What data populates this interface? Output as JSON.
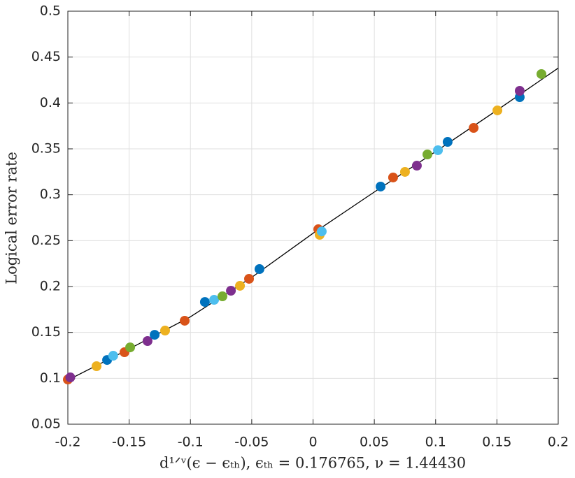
{
  "chart_data": {
    "type": "scatter",
    "x_label": "d¹ᐟᵛ(ϵ − ϵₜₕ), ϵₜₕ = 0.176765, ν = 1.44430",
    "y_label": "Logical error rate",
    "xlim": [
      -0.2,
      0.2
    ],
    "ylim": [
      0.05,
      0.5
    ],
    "xticks": [
      -0.2,
      -0.15,
      -0.1,
      -0.05,
      0,
      0.05,
      0.1,
      0.15,
      0.2
    ],
    "yticks": [
      0.05,
      0.1,
      0.15,
      0.2,
      0.25,
      0.3,
      0.35,
      0.4,
      0.45,
      0.5
    ],
    "grid": true,
    "series": [
      {
        "type": "line",
        "color": "#000000",
        "x": [
          -0.2,
          -0.15,
          -0.1,
          -0.05,
          0,
          0.05,
          0.1,
          0.15,
          0.2
        ],
        "values": [
          0.098,
          0.132,
          0.167,
          0.21,
          0.258,
          0.303,
          0.347,
          0.392,
          0.438
        ]
      },
      {
        "type": "scatter",
        "x": [
          -0.2,
          -0.198,
          -0.1766,
          -0.168,
          -0.163,
          -0.1538,
          -0.1492,
          -0.135,
          -0.1292,
          -0.1207,
          -0.1047,
          -0.0882,
          -0.0807,
          -0.0739,
          -0.067,
          -0.0596,
          -0.0522,
          -0.0437,
          0.0043,
          0.0054,
          0.0071,
          0.0551,
          0.0653,
          0.075,
          0.0847,
          0.0933,
          0.1019,
          0.1098,
          0.131,
          0.1504,
          0.1686,
          0.1686,
          0.1863
        ],
        "values": [
          0.0987,
          0.101,
          0.1132,
          0.12,
          0.1246,
          0.1284,
          0.1337,
          0.1406,
          0.1474,
          0.152,
          0.1627,
          0.1832,
          0.1855,
          0.1893,
          0.1954,
          0.2008,
          0.2084,
          0.219,
          0.2624,
          0.2563,
          0.26,
          0.3089,
          0.3188,
          0.3249,
          0.3317,
          0.3439,
          0.3485,
          0.3576,
          0.3728,
          0.3919,
          0.4063,
          0.4132,
          0.4315
        ],
        "colors": [
          "#D95319",
          "#7E2F8E",
          "#EDB120",
          "#0072BD",
          "#4DBEEE",
          "#D95319",
          "#77AC30",
          "#7E2F8E",
          "#0072BD",
          "#EDB120",
          "#D95319",
          "#0072BD",
          "#4DBEEE",
          "#77AC30",
          "#7E2F8E",
          "#EDB120",
          "#D95319",
          "#0072BD",
          "#D95319",
          "#EDB120",
          "#4DBEEE",
          "#0072BD",
          "#D95319",
          "#EDB120",
          "#7E2F8E",
          "#77AC30",
          "#4DBEEE",
          "#0072BD",
          "#D95319",
          "#EDB120",
          "#0072BD",
          "#7E2F8E",
          "#77AC30"
        ]
      }
    ]
  }
}
